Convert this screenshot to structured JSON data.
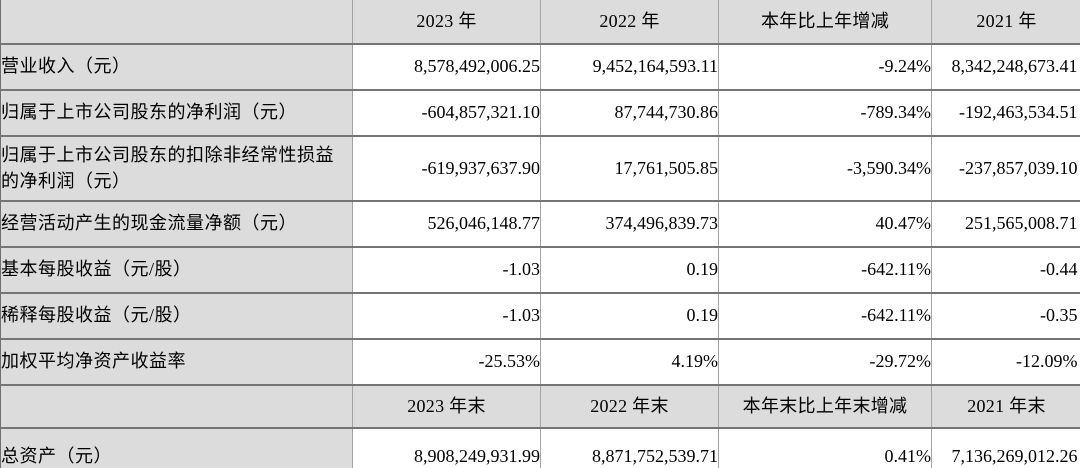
{
  "colors": {
    "cell_gray": "#dcdcdc",
    "horizontal_border": "#757575",
    "vertical_border": "#a3a3a3",
    "text": "#000000"
  },
  "table": {
    "header": {
      "label": "",
      "y2023": "2023 年",
      "y2022": "2022 年",
      "change": "本年比上年增减",
      "y2021": "2021 年"
    },
    "rows": [
      {
        "label": "营业收入（元）",
        "y2023": "8,578,492,006.25",
        "y2022": "9,452,164,593.11",
        "change": "-9.24%",
        "y2021": "8,342,248,673.41"
      },
      {
        "label": "归属于上市公司股东的净利润（元）",
        "y2023": "-604,857,321.10",
        "y2022": "87,744,730.86",
        "change": "-789.34%",
        "y2021": "-192,463,534.51"
      },
      {
        "label": "归属于上市公司股东的扣除非经常性损益的净利润（元）",
        "y2023": "-619,937,637.90",
        "y2022": "17,761,505.85",
        "change": "-3,590.34%",
        "y2021": "-237,857,039.10"
      },
      {
        "label": "经营活动产生的现金流量净额（元）",
        "y2023": "526,046,148.77",
        "y2022": "374,496,839.73",
        "change": "40.47%",
        "y2021": "251,565,008.71"
      },
      {
        "label": "基本每股收益（元/股）",
        "y2023": "-1.03",
        "y2022": "0.19",
        "change": "-642.11%",
        "y2021": "-0.44"
      },
      {
        "label": "稀释每股收益（元/股）",
        "y2023": "-1.03",
        "y2022": "0.19",
        "change": "-642.11%",
        "y2021": "-0.35"
      },
      {
        "label": "加权平均净资产收益率",
        "y2023": "-25.53%",
        "y2022": "4.19%",
        "change": "-29.72%",
        "y2021": "-12.09%"
      }
    ],
    "subheader": {
      "label": "",
      "y2023": "2023 年末",
      "y2022": "2022 年末",
      "change": "本年末比上年末增减",
      "y2021": "2021 年末"
    },
    "rows2": [
      {
        "label": "总资产（元）",
        "y2023": "8,908,249,931.99",
        "y2022": "8,871,752,539.71",
        "change": "0.41%",
        "y2021": "7,136,269,012.26"
      }
    ]
  }
}
